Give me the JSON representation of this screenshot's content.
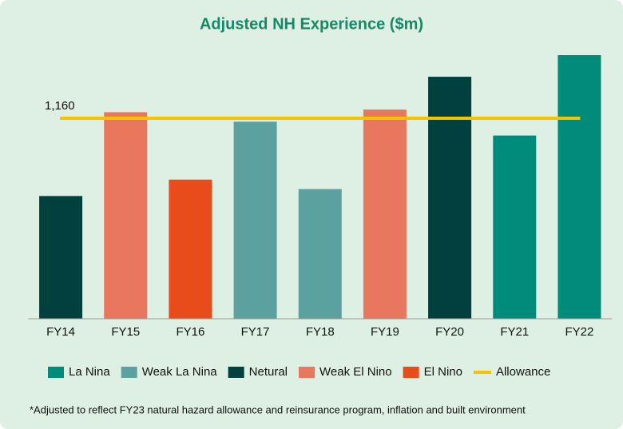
{
  "chart_data": {
    "type": "bar",
    "title": "Adjusted NH Experience ($m)",
    "categories": [
      "FY14",
      "FY15",
      "FY16",
      "FY17",
      "FY18",
      "FY19",
      "FY20",
      "FY21",
      "FY22"
    ],
    "series": [
      {
        "name": "La Nina",
        "color": "#008b7a",
        "values": [
          null,
          null,
          null,
          null,
          null,
          null,
          null,
          1060,
          1525
        ]
      },
      {
        "name": "Weak La Nina",
        "color": "#5ba19f",
        "values": [
          null,
          null,
          null,
          1140,
          750,
          null,
          null,
          null,
          null
        ]
      },
      {
        "name": "Netural",
        "color": "#00403f",
        "values": [
          710,
          null,
          null,
          null,
          null,
          null,
          1400,
          null,
          null
        ]
      },
      {
        "name": "Weak El Nino",
        "color": "#e8775d",
        "values": [
          null,
          1195,
          null,
          null,
          null,
          1210,
          null,
          null,
          null
        ]
      },
      {
        "name": "El Nino",
        "color": "#e84c1a",
        "values": [
          null,
          null,
          805,
          null,
          null,
          null,
          null,
          null,
          null
        ]
      }
    ],
    "allowance": {
      "name": "Allowance",
      "color": "#f5c400",
      "value": 1160,
      "value_label": "1,160"
    },
    "ylim": [
      0,
      1600
    ],
    "footnote": "*Adjusted to reflect FY23 natural hazard allowance and reinsurance program, inflation and built environment"
  }
}
